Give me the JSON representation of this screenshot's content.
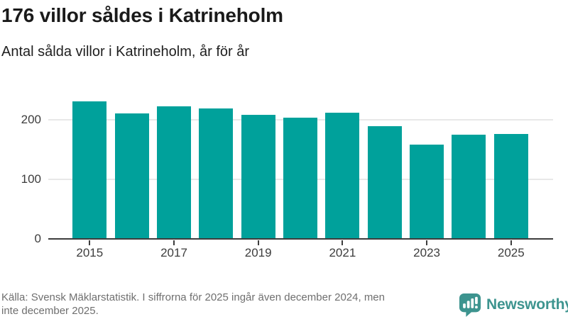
{
  "header": {
    "title": "176 villor såldes i Katrineholm",
    "subtitle": "Antal sålda villor i Katrineholm, år för år"
  },
  "footer": {
    "line1": "Källa: Svensk Mäklarstatistik. I siffrorna för 2025 ingår även december 2024, men",
    "line2": "inte december 2025."
  },
  "branding": {
    "name": "Newsworthy",
    "icon": "bar-chart-speech-bubble-icon",
    "color": "#3d948f"
  },
  "chart_data": {
    "type": "bar",
    "categories": [
      "2015",
      "2016",
      "2017",
      "2018",
      "2019",
      "2020",
      "2021",
      "2022",
      "2023",
      "2024",
      "2025"
    ],
    "values": [
      231,
      211,
      223,
      219,
      208,
      204,
      212,
      189,
      158,
      175,
      176
    ],
    "title": "176 villor såldes i Katrineholm",
    "subtitle": "Antal sålda villor i Katrineholm, år för år",
    "xlabel": "",
    "ylabel": "",
    "x_tick_labels": [
      "2015",
      "2017",
      "2019",
      "2021",
      "2023",
      "2025"
    ],
    "y_ticks": [
      0,
      100,
      200
    ],
    "ylim": [
      0,
      240
    ],
    "grid": "horizontal gridlines at 100 and 200",
    "legend": "none",
    "bar_color": "#00a19b",
    "gridline_color": "#e8e8e8",
    "axis_color": "#3d3d3d"
  }
}
